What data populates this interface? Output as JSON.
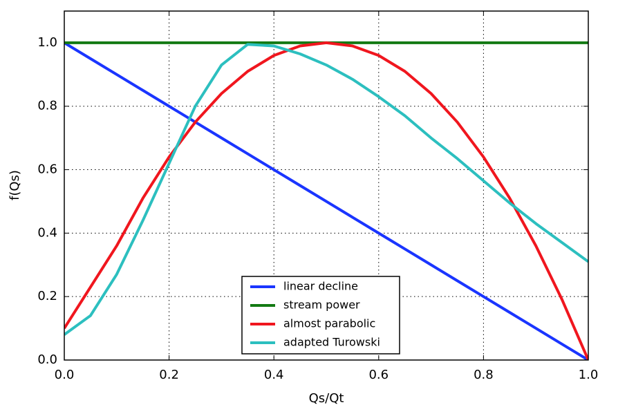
{
  "chart_data": {
    "type": "line",
    "xlabel": "Qs/Qt",
    "ylabel": "f(Qs)",
    "x": [
      0,
      0.05,
      0.1,
      0.15,
      0.2,
      0.25,
      0.3,
      0.35,
      0.4,
      0.45,
      0.5,
      0.55,
      0.6,
      0.65,
      0.7,
      0.75,
      0.8,
      0.85,
      0.9,
      0.95,
      1.0
    ],
    "series": [
      {
        "name": "linear decline",
        "color": "#1a35ff",
        "values": [
          1.0,
          0.95,
          0.9,
          0.85,
          0.8,
          0.75,
          0.7,
          0.65,
          0.6,
          0.55,
          0.5,
          0.45,
          0.4,
          0.35,
          0.3,
          0.25,
          0.2,
          0.15,
          0.1,
          0.05,
          0.0
        ]
      },
      {
        "name": "stream power",
        "color": "#137a13",
        "values": [
          1,
          1,
          1,
          1,
          1,
          1,
          1,
          1,
          1,
          1,
          1,
          1,
          1,
          1,
          1,
          1,
          1,
          1,
          1,
          1,
          1
        ]
      },
      {
        "name": "almost parabolic",
        "color": "#f0161e",
        "values": [
          0.1,
          0.23,
          0.36,
          0.51,
          0.64,
          0.75,
          0.84,
          0.91,
          0.96,
          0.99,
          1.0,
          0.99,
          0.96,
          0.91,
          0.84,
          0.75,
          0.64,
          0.51,
          0.36,
          0.19,
          0.0
        ]
      },
      {
        "name": "adapted Turowski",
        "color": "#2cbfbf",
        "values": [
          0.08,
          0.14,
          0.27,
          0.44,
          0.62,
          0.8,
          0.93,
          0.995,
          0.99,
          0.965,
          0.93,
          0.885,
          0.83,
          0.77,
          0.7,
          0.635,
          0.565,
          0.495,
          0.43,
          0.37,
          0.31
        ]
      }
    ],
    "xlim": [
      0,
      1.0
    ],
    "ylim": [
      0,
      1.1
    ],
    "xticks": [
      {
        "value": 0,
        "label": "0.0"
      },
      0.2,
      0.4,
      0.6,
      0.8,
      {
        "value": 1.0,
        "label": "1.0"
      }
    ],
    "yticks": [
      {
        "value": 0,
        "label": "0.0"
      },
      0.2,
      0.4,
      0.6,
      0.8,
      {
        "value": 1.0,
        "label": "1.0"
      }
    ],
    "grid": true,
    "legend": "lower center"
  }
}
